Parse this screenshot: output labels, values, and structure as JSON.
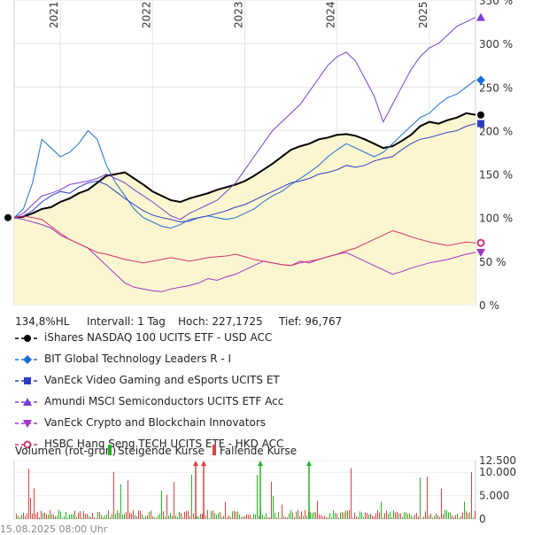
{
  "chart_data": {
    "type": "line",
    "x_ticks": [
      "2021",
      "2022",
      "2023",
      "2024",
      "2025"
    ],
    "y_ticks": [
      "0 %",
      "50 %",
      "100 %",
      "150 %",
      "200 %",
      "250 %",
      "300 %",
      "350 %"
    ],
    "ylim": [
      0,
      350
    ],
    "y_unit": "%",
    "x_start": "2020-08",
    "x_end": "2025-08",
    "series": [
      {
        "name": "iShares NASDAQ 100 UCITS ETF - USD ACC",
        "color": "#000000",
        "marker": "circle",
        "values": [
          100,
          101,
          105,
          110,
          112,
          118,
          122,
          128,
          132,
          140,
          148,
          150,
          152,
          145,
          138,
          130,
          125,
          120,
          118,
          122,
          125,
          128,
          132,
          135,
          138,
          142,
          148,
          155,
          162,
          170,
          178,
          182,
          185,
          190,
          192,
          195,
          196,
          194,
          190,
          185,
          180,
          182,
          188,
          195,
          205,
          210,
          208,
          212,
          215,
          220,
          218
        ]
      },
      {
        "name": "BIT Global Technology Leaders R - I",
        "color": "#1a6fd4",
        "marker": "diamond",
        "values": [
          100,
          110,
          140,
          190,
          180,
          170,
          175,
          185,
          200,
          190,
          160,
          140,
          125,
          110,
          100,
          95,
          90,
          88,
          92,
          98,
          100,
          102,
          100,
          98,
          100,
          105,
          110,
          118,
          125,
          130,
          138,
          145,
          152,
          160,
          170,
          178,
          185,
          180,
          175,
          170,
          175,
          185,
          195,
          205,
          215,
          220,
          230,
          238,
          242,
          250,
          258
        ]
      },
      {
        "name": "VanEck Video Gaming and eSports UCITS ET",
        "color": "#2b3cc4",
        "marker": "square",
        "values": [
          100,
          102,
          108,
          118,
          125,
          130,
          128,
          135,
          140,
          142,
          138,
          130,
          122,
          115,
          108,
          103,
          100,
          98,
          95,
          96,
          100,
          102,
          105,
          108,
          112,
          115,
          120,
          125,
          130,
          135,
          140,
          142,
          145,
          150,
          152,
          155,
          160,
          158,
          160,
          165,
          168,
          170,
          178,
          185,
          190,
          192,
          195,
          198,
          200,
          205,
          208
        ]
      },
      {
        "name": "Amundi MSCI Semiconductors UCITS ETF Acc",
        "color": "#7a3fd0",
        "marker": "triangle-up",
        "values": [
          100,
          105,
          115,
          125,
          128,
          132,
          138,
          140,
          142,
          145,
          150,
          145,
          140,
          132,
          125,
          118,
          110,
          102,
          98,
          105,
          110,
          115,
          120,
          130,
          140,
          155,
          170,
          185,
          200,
          210,
          220,
          230,
          245,
          260,
          275,
          285,
          290,
          280,
          260,
          240,
          210,
          230,
          250,
          270,
          285,
          295,
          300,
          310,
          320,
          325,
          330
        ]
      },
      {
        "name": "VanEck Crypto and Blockchain Innovators",
        "color": "#a234c8",
        "marker": "triangle-down",
        "values": [
          100,
          98,
          95,
          92,
          88,
          80,
          75,
          70,
          65,
          55,
          45,
          35,
          25,
          20,
          18,
          16,
          15,
          18,
          20,
          22,
          25,
          30,
          28,
          32,
          35,
          40,
          45,
          50,
          48,
          46,
          45,
          50,
          48,
          52,
          55,
          58,
          60,
          55,
          50,
          45,
          40,
          35,
          38,
          42,
          45,
          48,
          50,
          52,
          55,
          58,
          60
        ]
      },
      {
        "name": "HSBC Hang Seng TECH UCITS ETF - HKD ACC",
        "color": "#d4326e",
        "marker": "circle-open",
        "values": [
          100,
          102,
          100,
          98,
          90,
          82,
          75,
          70,
          65,
          60,
          58,
          55,
          52,
          50,
          48,
          50,
          52,
          54,
          52,
          50,
          52,
          54,
          55,
          56,
          58,
          55,
          52,
          50,
          48,
          46,
          45,
          48,
          50,
          52,
          55,
          58,
          62,
          65,
          70,
          75,
          80,
          85,
          82,
          78,
          75,
          72,
          70,
          68,
          70,
          72,
          71
        ]
      }
    ]
  },
  "stats": {
    "perf": "134,8%HL",
    "interval": "Intervall: 1 Tag",
    "high": "Hoch: 227,1725",
    "low": "Tief:  96,767"
  },
  "volume": {
    "title": "Volumen (rot-grün)",
    "rising": "Steigende Kurse",
    "falling": "Fallende Kurse",
    "rising_color": "#22b422",
    "falling_color": "#e04040",
    "y_ticks": [
      "12.500",
      "10.000",
      "5.000",
      "0"
    ],
    "ylim": [
      0,
      12500
    ]
  },
  "timestamp": "15.08.2025 08:00 Uhr",
  "area_fill_color": "#fbf6d0"
}
